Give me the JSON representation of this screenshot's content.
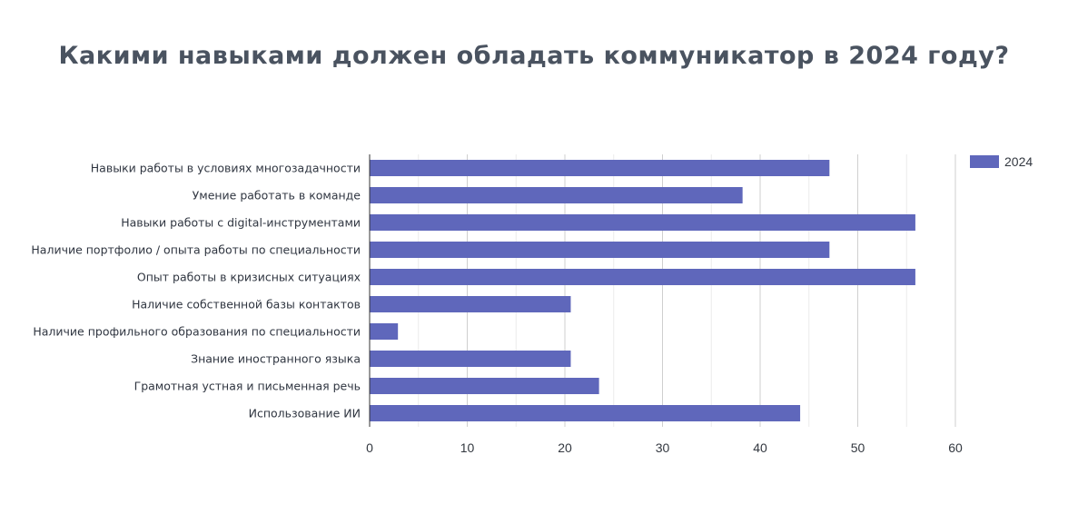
{
  "chart_data": {
    "type": "bar",
    "orientation": "horizontal",
    "title": "Какими навыками должен обладать коммуникатор в 2024 году?",
    "xlabel": "",
    "ylabel": "",
    "categories": [
      "Навыки работы в условиях многозадачности",
      "Умение работать в команде",
      "Навыки работы с digital-инструментами",
      "Наличие портфолио / опыта  работы по специальности",
      "Опыт работы в кризисных ситуациях",
      "Наличие собственной базы контактов",
      "Наличие профильного образования по специальности",
      "Знание иностранного языка",
      "Грамотная устная и письменная речь",
      "Использование ИИ"
    ],
    "series": [
      {
        "name": "2024",
        "color": "#5f67bb",
        "values": [
          47.1,
          38.2,
          55.9,
          47.1,
          55.9,
          20.6,
          2.9,
          20.6,
          23.5,
          44.1
        ]
      }
    ],
    "xlim": [
      0,
      60
    ],
    "xticks": [
      "0",
      "10",
      "20",
      "30",
      "40",
      "50",
      "60"
    ],
    "grid": true,
    "legend": "top-right"
  }
}
